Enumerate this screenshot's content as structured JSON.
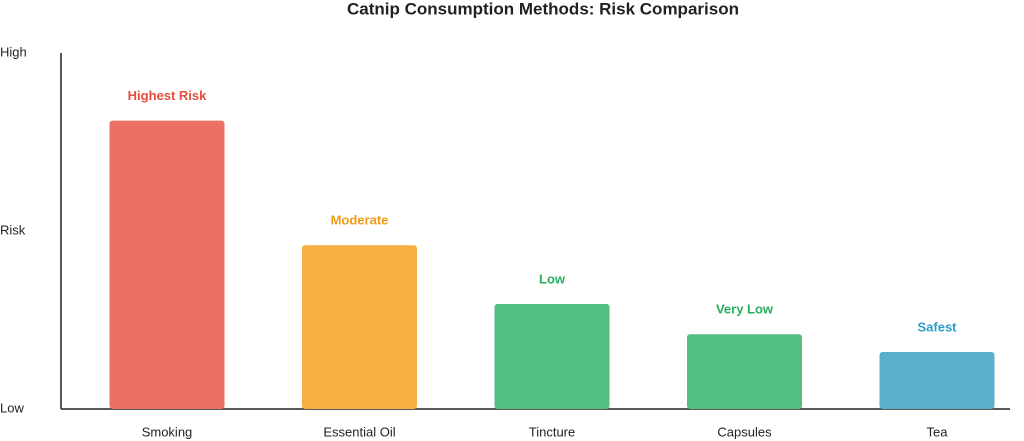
{
  "chart_data": {
    "type": "bar",
    "title": "Catnip Consumption Methods: Risk Comparison",
    "y_label": "Risk",
    "categories": [
      "Smoking",
      "Essential Oil",
      "Tincture",
      "Capsules",
      "Tea"
    ],
    "values": [
      81,
      46,
      29.5,
      21,
      16
    ],
    "value_labels": [
      "Highest Risk",
      "Moderate",
      "Low",
      "Very Low",
      "Safest"
    ],
    "colors": [
      "#ec7063",
      "#f5b041",
      "#52be80",
      "#52be80",
      "#5aafc9"
    ],
    "label_colors": [
      "#e74c3c",
      "#f39c12",
      "#27ae60",
      "#27ae60",
      "#2e9fc9"
    ],
    "ylim": [
      0,
      100
    ],
    "yticks": [
      {
        "value": 0,
        "label": "Low"
      },
      {
        "value": 100,
        "label": "High"
      }
    ],
    "grid": false
  }
}
